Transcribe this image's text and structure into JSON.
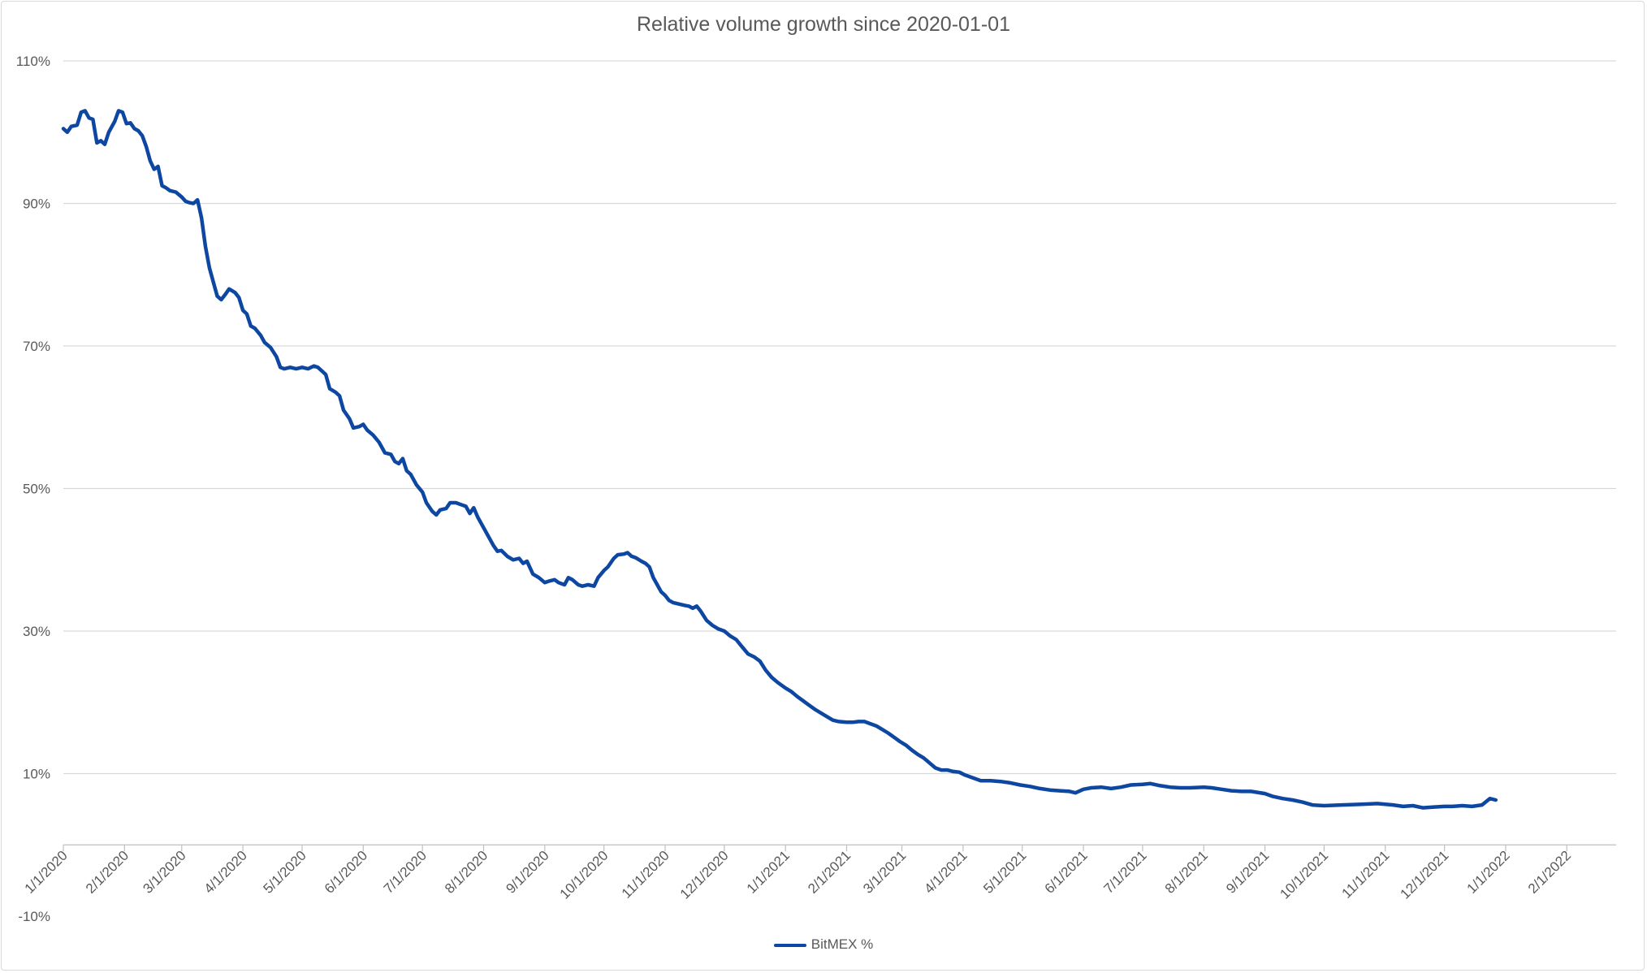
{
  "chart_data": {
    "type": "line",
    "title": "Relative volume growth since 2020-01-01",
    "xlabel": "",
    "ylabel": "",
    "ylim": [
      -10,
      110
    ],
    "ytick_values": [
      -10,
      10,
      30,
      50,
      70,
      90,
      110
    ],
    "ytick_labels": [
      "-10%",
      "10%",
      "30%",
      "50%",
      "70%",
      "90%",
      "110%"
    ],
    "xtick_labels": [
      "1/1/2020",
      "2/1/2020",
      "3/1/2020",
      "4/1/2020",
      "5/1/2020",
      "6/1/2020",
      "7/1/2020",
      "8/1/2020",
      "9/1/2020",
      "10/1/2020",
      "11/1/2020",
      "12/1/2020",
      "1/1/2021",
      "2/1/2021",
      "3/1/2021",
      "4/1/2021",
      "5/1/2021",
      "6/1/2021",
      "7/1/2021",
      "8/1/2021",
      "9/1/2021",
      "10/1/2021",
      "11/1/2021",
      "12/1/2021",
      "1/1/2022",
      "2/1/2022"
    ],
    "xtick_dates": [
      "2020-01-01",
      "2020-02-01",
      "2020-03-01",
      "2020-04-01",
      "2020-05-01",
      "2020-06-01",
      "2020-07-01",
      "2020-08-01",
      "2020-09-01",
      "2020-10-01",
      "2020-11-01",
      "2020-12-01",
      "2021-01-01",
      "2021-02-01",
      "2021-03-01",
      "2021-04-01",
      "2021-05-01",
      "2021-06-01",
      "2021-07-01",
      "2021-08-01",
      "2021-09-01",
      "2021-10-01",
      "2021-11-01",
      "2021-12-01",
      "2022-01-01",
      "2022-02-01"
    ],
    "xlim": [
      "2020-01-01",
      "2022-02-26"
    ],
    "grid": true,
    "legend_position": "bottom",
    "series": [
      {
        "name": "BitMEX %",
        "color": "#0d47a1",
        "points": [
          [
            "2020-01-01",
            100.5
          ],
          [
            "2020-01-03",
            100
          ],
          [
            "2020-01-05",
            100.8
          ],
          [
            "2020-01-08",
            101
          ],
          [
            "2020-01-10",
            102.8
          ],
          [
            "2020-01-12",
            103
          ],
          [
            "2020-01-14",
            102
          ],
          [
            "2020-01-16",
            101.8
          ],
          [
            "2020-01-18",
            98.5
          ],
          [
            "2020-01-20",
            98.8
          ],
          [
            "2020-01-22",
            98.3
          ],
          [
            "2020-01-24",
            100
          ],
          [
            "2020-01-27",
            101.5
          ],
          [
            "2020-01-29",
            103
          ],
          [
            "2020-01-31",
            102.8
          ],
          [
            "2020-02-02",
            101.2
          ],
          [
            "2020-02-04",
            101.3
          ],
          [
            "2020-02-06",
            100.5
          ],
          [
            "2020-02-08",
            100.2
          ],
          [
            "2020-02-10",
            99.5
          ],
          [
            "2020-02-12",
            98
          ],
          [
            "2020-02-14",
            96
          ],
          [
            "2020-02-16",
            94.8
          ],
          [
            "2020-02-18",
            95.2
          ],
          [
            "2020-02-20",
            92.5
          ],
          [
            "2020-02-22",
            92.2
          ],
          [
            "2020-02-24",
            91.8
          ],
          [
            "2020-02-27",
            91.6
          ],
          [
            "2020-03-01",
            90.9
          ],
          [
            "2020-03-03",
            90.3
          ],
          [
            "2020-03-05",
            90.1
          ],
          [
            "2020-03-07",
            90
          ],
          [
            "2020-03-09",
            90.5
          ],
          [
            "2020-03-11",
            88
          ],
          [
            "2020-03-13",
            84
          ],
          [
            "2020-03-15",
            81
          ],
          [
            "2020-03-17",
            79
          ],
          [
            "2020-03-19",
            77
          ],
          [
            "2020-03-21",
            76.5
          ],
          [
            "2020-03-23",
            77.2
          ],
          [
            "2020-03-25",
            78
          ],
          [
            "2020-03-28",
            77.5
          ],
          [
            "2020-03-30",
            76.8
          ],
          [
            "2020-04-01",
            75
          ],
          [
            "2020-04-03",
            74.5
          ],
          [
            "2020-04-05",
            72.8
          ],
          [
            "2020-04-07",
            72.5
          ],
          [
            "2020-04-10",
            71.5
          ],
          [
            "2020-04-12",
            70.5
          ],
          [
            "2020-04-15",
            69.8
          ],
          [
            "2020-04-18",
            68.5
          ],
          [
            "2020-04-20",
            67
          ],
          [
            "2020-04-22",
            66.8
          ],
          [
            "2020-04-25",
            67
          ],
          [
            "2020-04-28",
            66.8
          ],
          [
            "2020-05-01",
            67
          ],
          [
            "2020-05-04",
            66.8
          ],
          [
            "2020-05-07",
            67.2
          ],
          [
            "2020-05-09",
            67
          ],
          [
            "2020-05-11",
            66.5
          ],
          [
            "2020-05-13",
            66
          ],
          [
            "2020-05-15",
            64
          ],
          [
            "2020-05-18",
            63.5
          ],
          [
            "2020-05-20",
            63
          ],
          [
            "2020-05-22",
            61
          ],
          [
            "2020-05-25",
            59.8
          ],
          [
            "2020-05-27",
            58.5
          ],
          [
            "2020-05-30",
            58.7
          ],
          [
            "2020-06-01",
            59
          ],
          [
            "2020-06-03",
            58.2
          ],
          [
            "2020-06-06",
            57.5
          ],
          [
            "2020-06-09",
            56.5
          ],
          [
            "2020-06-12",
            55
          ],
          [
            "2020-06-15",
            54.8
          ],
          [
            "2020-06-17",
            53.8
          ],
          [
            "2020-06-19",
            53.5
          ],
          [
            "2020-06-21",
            54.2
          ],
          [
            "2020-06-23",
            52.5
          ],
          [
            "2020-06-25",
            52
          ],
          [
            "2020-06-28",
            50.5
          ],
          [
            "2020-07-01",
            49.5
          ],
          [
            "2020-07-03",
            48
          ],
          [
            "2020-07-06",
            46.8
          ],
          [
            "2020-07-08",
            46.3
          ],
          [
            "2020-07-10",
            47
          ],
          [
            "2020-07-13",
            47.2
          ],
          [
            "2020-07-15",
            48
          ],
          [
            "2020-07-18",
            48
          ],
          [
            "2020-07-20",
            47.8
          ],
          [
            "2020-07-23",
            47.5
          ],
          [
            "2020-07-25",
            46.5
          ],
          [
            "2020-07-27",
            47.3
          ],
          [
            "2020-07-29",
            46
          ],
          [
            "2020-08-01",
            44.5
          ],
          [
            "2020-08-03",
            43.5
          ],
          [
            "2020-08-06",
            42
          ],
          [
            "2020-08-08",
            41.2
          ],
          [
            "2020-08-10",
            41.3
          ],
          [
            "2020-08-13",
            40.5
          ],
          [
            "2020-08-16",
            40
          ],
          [
            "2020-08-19",
            40.2
          ],
          [
            "2020-08-21",
            39.5
          ],
          [
            "2020-08-23",
            39.8
          ],
          [
            "2020-08-26",
            38
          ],
          [
            "2020-08-29",
            37.5
          ],
          [
            "2020-09-01",
            36.8
          ],
          [
            "2020-09-03",
            37
          ],
          [
            "2020-09-06",
            37.2
          ],
          [
            "2020-09-08",
            36.8
          ],
          [
            "2020-09-11",
            36.5
          ],
          [
            "2020-09-13",
            37.5
          ],
          [
            "2020-09-15",
            37.2
          ],
          [
            "2020-09-18",
            36.5
          ],
          [
            "2020-09-20",
            36.3
          ],
          [
            "2020-09-23",
            36.5
          ],
          [
            "2020-09-26",
            36.3
          ],
          [
            "2020-09-28",
            37.5
          ],
          [
            "2020-10-01",
            38.5
          ],
          [
            "2020-10-03",
            39
          ],
          [
            "2020-10-06",
            40.2
          ],
          [
            "2020-10-08",
            40.7
          ],
          [
            "2020-10-11",
            40.8
          ],
          [
            "2020-10-13",
            41
          ],
          [
            "2020-10-15",
            40.5
          ],
          [
            "2020-10-17",
            40.3
          ],
          [
            "2020-10-20",
            39.8
          ],
          [
            "2020-10-22",
            39.5
          ],
          [
            "2020-10-24",
            39
          ],
          [
            "2020-10-26",
            37.5
          ],
          [
            "2020-10-28",
            36.5
          ],
          [
            "2020-10-30",
            35.5
          ],
          [
            "2020-11-01",
            35
          ],
          [
            "2020-11-03",
            34.3
          ],
          [
            "2020-11-05",
            34
          ],
          [
            "2020-11-08",
            33.8
          ],
          [
            "2020-11-11",
            33.6
          ],
          [
            "2020-11-13",
            33.5
          ],
          [
            "2020-11-15",
            33.2
          ],
          [
            "2020-11-17",
            33.5
          ],
          [
            "2020-11-19",
            32.8
          ],
          [
            "2020-11-22",
            31.5
          ],
          [
            "2020-11-25",
            30.8
          ],
          [
            "2020-11-28",
            30.3
          ],
          [
            "2020-12-01",
            30
          ],
          [
            "2020-12-04",
            29.3
          ],
          [
            "2020-12-07",
            28.8
          ],
          [
            "2020-12-10",
            27.8
          ],
          [
            "2020-12-13",
            26.8
          ],
          [
            "2020-12-16",
            26.4
          ],
          [
            "2020-12-19",
            25.8
          ],
          [
            "2020-12-22",
            24.5
          ],
          [
            "2020-12-25",
            23.5
          ],
          [
            "2020-12-28",
            22.8
          ],
          [
            "2021-01-01",
            22
          ],
          [
            "2021-01-04",
            21.5
          ],
          [
            "2021-01-07",
            20.8
          ],
          [
            "2021-01-10",
            20.2
          ],
          [
            "2021-01-13",
            19.6
          ],
          [
            "2021-01-16",
            19
          ],
          [
            "2021-01-19",
            18.5
          ],
          [
            "2021-01-22",
            18
          ],
          [
            "2021-01-25",
            17.5
          ],
          [
            "2021-01-28",
            17.3
          ],
          [
            "2021-02-01",
            17.2
          ],
          [
            "2021-02-04",
            17.2
          ],
          [
            "2021-02-07",
            17.3
          ],
          [
            "2021-02-10",
            17.3
          ],
          [
            "2021-02-13",
            17
          ],
          [
            "2021-02-16",
            16.7
          ],
          [
            "2021-02-19",
            16.2
          ],
          [
            "2021-02-22",
            15.7
          ],
          [
            "2021-02-25",
            15.1
          ],
          [
            "2021-02-28",
            14.5
          ],
          [
            "2021-03-03",
            14
          ],
          [
            "2021-03-06",
            13.3
          ],
          [
            "2021-03-09",
            12.7
          ],
          [
            "2021-03-12",
            12.2
          ],
          [
            "2021-03-15",
            11.5
          ],
          [
            "2021-03-18",
            10.8
          ],
          [
            "2021-03-21",
            10.5
          ],
          [
            "2021-03-24",
            10.5
          ],
          [
            "2021-03-27",
            10.3
          ],
          [
            "2021-03-30",
            10.2
          ],
          [
            "2021-04-02",
            9.8
          ],
          [
            "2021-04-06",
            9.4
          ],
          [
            "2021-04-10",
            9
          ],
          [
            "2021-04-15",
            9
          ],
          [
            "2021-04-20",
            8.9
          ],
          [
            "2021-04-25",
            8.7
          ],
          [
            "2021-04-30",
            8.4
          ],
          [
            "2021-05-05",
            8.2
          ],
          [
            "2021-05-10",
            7.9
          ],
          [
            "2021-05-15",
            7.7
          ],
          [
            "2021-05-20",
            7.6
          ],
          [
            "2021-05-25",
            7.5
          ],
          [
            "2021-05-28",
            7.3
          ],
          [
            "2021-06-01",
            7.8
          ],
          [
            "2021-06-05",
            8
          ],
          [
            "2021-06-10",
            8.1
          ],
          [
            "2021-06-15",
            7.9
          ],
          [
            "2021-06-20",
            8.1
          ],
          [
            "2021-06-25",
            8.4
          ],
          [
            "2021-07-01",
            8.5
          ],
          [
            "2021-07-05",
            8.6
          ],
          [
            "2021-07-10",
            8.3
          ],
          [
            "2021-07-15",
            8.1
          ],
          [
            "2021-07-20",
            8
          ],
          [
            "2021-07-25",
            8
          ],
          [
            "2021-08-01",
            8.1
          ],
          [
            "2021-08-05",
            8
          ],
          [
            "2021-08-10",
            7.8
          ],
          [
            "2021-08-15",
            7.6
          ],
          [
            "2021-08-20",
            7.5
          ],
          [
            "2021-08-25",
            7.5
          ],
          [
            "2021-09-01",
            7.2
          ],
          [
            "2021-09-05",
            6.8
          ],
          [
            "2021-09-10",
            6.5
          ],
          [
            "2021-09-15",
            6.3
          ],
          [
            "2021-09-20",
            6
          ],
          [
            "2021-09-25",
            5.6
          ],
          [
            "2021-10-01",
            5.5
          ],
          [
            "2021-10-10",
            5.6
          ],
          [
            "2021-10-20",
            5.7
          ],
          [
            "2021-10-28",
            5.8
          ],
          [
            "2021-11-05",
            5.6
          ],
          [
            "2021-11-10",
            5.4
          ],
          [
            "2021-11-15",
            5.5
          ],
          [
            "2021-11-20",
            5.2
          ],
          [
            "2021-11-25",
            5.3
          ],
          [
            "2021-12-01",
            5.4
          ],
          [
            "2021-12-05",
            5.4
          ],
          [
            "2021-12-10",
            5.5
          ],
          [
            "2021-12-15",
            5.4
          ],
          [
            "2021-12-20",
            5.6
          ],
          [
            "2021-12-24",
            6.5
          ],
          [
            "2021-12-27",
            6.3
          ]
        ]
      }
    ]
  }
}
